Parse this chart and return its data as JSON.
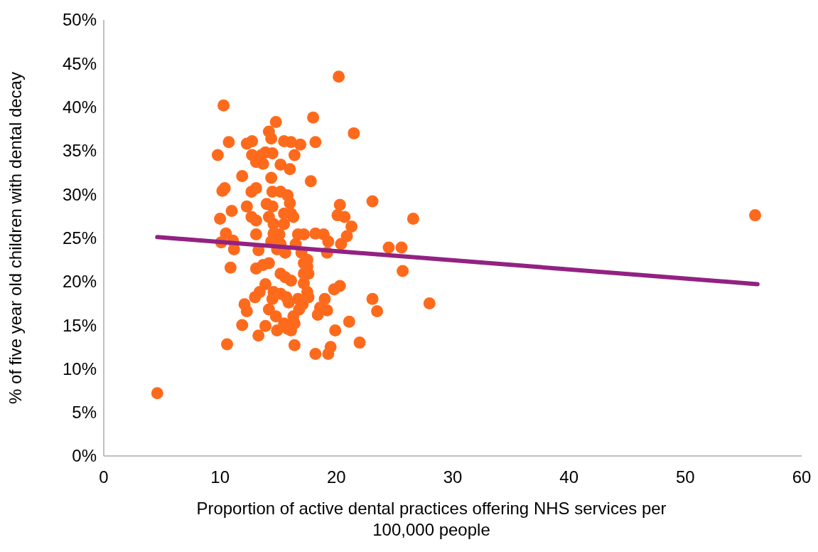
{
  "chart_data": {
    "type": "scatter",
    "xlabel": "Proportion of active dental practices offering NHS services per 100,000 people",
    "ylabel": "% of five year old children with dental decay",
    "xlim": [
      0,
      60
    ],
    "xticks": [
      0,
      10,
      20,
      30,
      40,
      50,
      60
    ],
    "ylim": [
      0,
      50
    ],
    "yticks": [
      {
        "value": 0,
        "label": "0%"
      },
      {
        "value": 5,
        "label": "5%"
      },
      {
        "value": 10,
        "label": "10%"
      },
      {
        "value": 15,
        "label": "15%"
      },
      {
        "value": 20,
        "label": "20%"
      },
      {
        "value": 25,
        "label": "25%"
      },
      {
        "value": 30,
        "label": "30%"
      },
      {
        "value": 35,
        "label": "35%"
      },
      {
        "value": 40,
        "label": "40%"
      },
      {
        "value": 45,
        "label": "45%"
      },
      {
        "value": 50,
        "label": "50%"
      }
    ],
    "grid": false,
    "series": [
      {
        "color": "#fe6a1c",
        "marker": "circle",
        "x": [
          4.6,
          10.3,
          10.75,
          9.8,
          10.4,
          10.2,
          10.0,
          10.5,
          10.1,
          11.1,
          11.2,
          11.0,
          10.9,
          10.6,
          11.9,
          12.3,
          12.3,
          12.75,
          12.75,
          13.1,
          13.55,
          13.9,
          12.7,
          13.1,
          12.7,
          13.1,
          13.1,
          13.3,
          13.1,
          13.7,
          13.4,
          13.0,
          12.1,
          12.3,
          11.9,
          13.3,
          14.2,
          14.4,
          14.8,
          14.5,
          13.7,
          14.4,
          14.5,
          14.0,
          14.5,
          14.2,
          14.6,
          14.6,
          14.4,
          14.9,
          14.2,
          13.9,
          14.2,
          13.9,
          14.6,
          14.5,
          14.8,
          14.9,
          15.2,
          15.5,
          16.0,
          16.1,
          16.4,
          16.9,
          15.2,
          15.8,
          16.0,
          15.5,
          16.1,
          16.3,
          15.5,
          15.1,
          15.2,
          15.6,
          15.2,
          15.6,
          16.1,
          15.2,
          15.7,
          15.9,
          15.5,
          15.8,
          16.1,
          16.3,
          16.4,
          16.5,
          16.7,
          17.2,
          17.0,
          17.2,
          17.5,
          17.2,
          17.2,
          17.5,
          16.7,
          17.1,
          17.6,
          16.8,
          16.4,
          17.5,
          17.8,
          18.0,
          18.2,
          18.2,
          17.6,
          18.2,
          18.9,
          19.2,
          19.3,
          19.0,
          18.6,
          18.4,
          19.2,
          19.3,
          19.5,
          19.9,
          19.8,
          20.3,
          20.1,
          20.2,
          20.3,
          20.4,
          20.7,
          20.9,
          21.1,
          21.3,
          21.5,
          22.0,
          23.1,
          23.1,
          23.5,
          24.5,
          25.6,
          25.7,
          26.6,
          28.0,
          56.0
        ],
        "values": [
          7.2,
          40.2,
          36.0,
          34.5,
          30.7,
          30.4,
          27.2,
          25.5,
          24.5,
          24.7,
          23.7,
          28.1,
          21.6,
          12.8,
          32.1,
          28.6,
          35.8,
          36.1,
          34.5,
          33.7,
          34.5,
          34.8,
          30.3,
          30.7,
          27.4,
          27.0,
          25.4,
          23.6,
          21.5,
          21.9,
          18.8,
          18.2,
          17.4,
          16.6,
          15.0,
          13.8,
          37.2,
          36.4,
          38.3,
          34.7,
          33.5,
          31.9,
          30.3,
          28.9,
          28.6,
          27.4,
          26.6,
          25.5,
          24.6,
          23.7,
          22.1,
          19.7,
          16.8,
          14.9,
          18.8,
          18.0,
          16.0,
          14.4,
          33.4,
          36.1,
          32.9,
          36.0,
          34.5,
          35.7,
          30.3,
          29.9,
          29.0,
          27.8,
          27.8,
          27.4,
          26.6,
          25.4,
          24.3,
          23.3,
          20.9,
          20.5,
          20.1,
          18.6,
          18.2,
          17.6,
          15.2,
          14.6,
          14.4,
          16.0,
          12.7,
          24.3,
          25.4,
          25.4,
          23.3,
          22.1,
          22.5,
          20.9,
          19.8,
          21.7,
          18.0,
          17.4,
          18.2,
          16.8,
          15.2,
          18.8,
          31.5,
          38.8,
          36.0,
          25.5,
          20.9,
          11.7,
          25.4,
          23.3,
          24.6,
          18.0,
          17.0,
          16.2,
          16.7,
          11.7,
          12.5,
          14.4,
          19.1,
          19.5,
          27.6,
          43.5,
          28.8,
          24.3,
          27.4,
          25.2,
          15.4,
          26.3,
          37.0,
          13.0,
          29.2,
          18.0,
          16.6,
          23.9,
          23.9,
          21.2,
          27.2,
          17.5,
          27.6
        ]
      },
      {
        "type": "line",
        "color": "#922282",
        "marker": "none",
        "x": [
          4.6,
          56.2
        ],
        "values": [
          25.1,
          19.7
        ]
      }
    ]
  }
}
